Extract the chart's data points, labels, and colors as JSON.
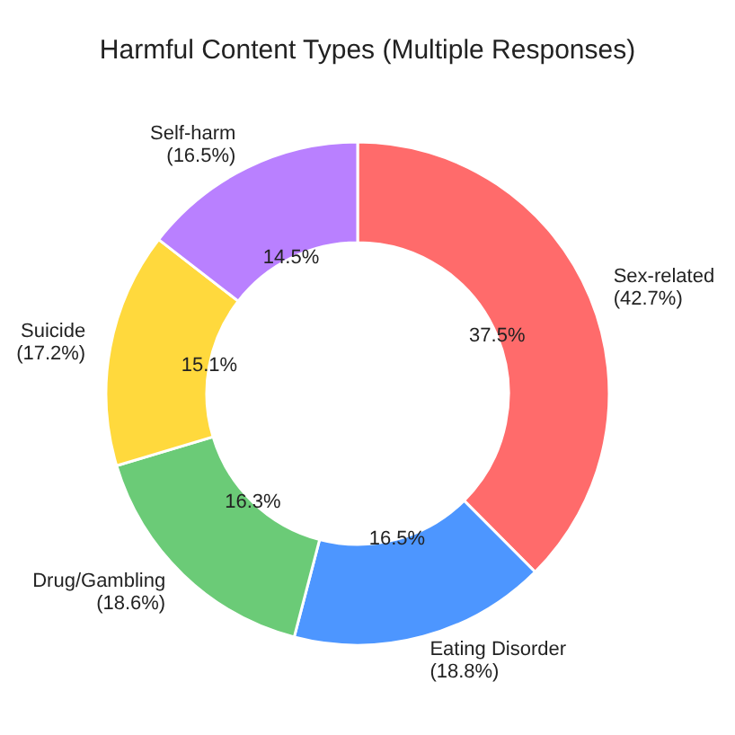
{
  "chart_data": {
    "type": "donut",
    "title": "Harmful Content Types (Multiple Responses)",
    "categories": [
      "Sex-related\n(42.7%)",
      "Eating Disorder\n(18.8%)",
      "Drug/Gambling\n(18.6%)",
      "Suicide\n(17.2%)",
      "Self-harm\n(16.5%)"
    ],
    "values": [
      37.5,
      16.5,
      16.3,
      15.1,
      14.5
    ],
    "colors": [
      "#ff6b6b",
      "#4d96ff",
      "#6bcb77",
      "#ffd93d",
      "#b980ff"
    ],
    "value_labels": [
      "37.5%",
      "16.5%",
      "16.3%",
      "15.1%",
      "14.5%"
    ]
  }
}
